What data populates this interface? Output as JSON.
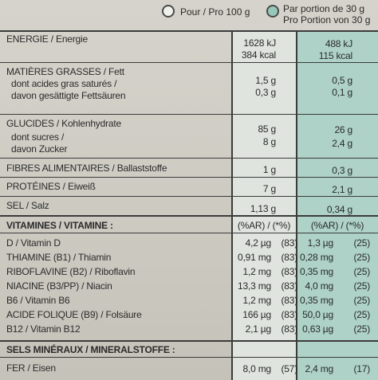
{
  "header": {
    "per100": "Pour / Pro 100 g",
    "perPortion1": "Par portion de 30 g",
    "perPortion2": "Pro Portion von 30 g"
  },
  "energy": {
    "label": "ENERGIE / Energie",
    "p1": "1628 kJ",
    "p2": "384 kcal",
    "s1": "488 kJ",
    "s2": "115 kcal"
  },
  "fat": {
    "label": "MATIÈRES GRASSES / Fett",
    "p": "1,5 g",
    "s": "0,5 g",
    "sub1": "dont acides gras saturés /",
    "sub2": "davon gesättigte Fettsäuren",
    "sp": "0,3 g",
    "ss": "0,1 g"
  },
  "carbs": {
    "label": "GLUCIDES / Kohlenhydrate",
    "p": "85 g",
    "s": "26 g",
    "sub1": "dont sucres /",
    "sub2": "davon Zucker",
    "sp": "8 g",
    "ss": "2,4 g"
  },
  "fibre": {
    "label": "FIBRES ALIMENTAIRES / Ballaststoffe",
    "p": "1 g",
    "s": "0,3 g"
  },
  "protein": {
    "label": "PROTÉINES / Eiweiß",
    "p": "7 g",
    "s": "2,1 g"
  },
  "salt": {
    "label": "SEL / Salz",
    "p": "1,13 g",
    "s": "0,34 g"
  },
  "vitamins": {
    "label": "VITAMINES / VITAMINE :",
    "hp": "(%AR) / (*%)",
    "hs": "(%AR) / (*%)",
    "rows": [
      {
        "label": "D / Vitamin D",
        "p": "4,2 µg",
        "pi": "(83)",
        "s": "1,3 µg",
        "si": "(25)"
      },
      {
        "label": "THIAMINE (B1) / Thiamin",
        "p": "0,91 mg",
        "pi": "(83)",
        "s": "0,28 mg",
        "si": "(25)"
      },
      {
        "label": "RIBOFLAVINE (B2) / Riboflavin",
        "p": "1,2 mg",
        "pi": "(83)",
        "s": "0,35 mg",
        "si": "(25)"
      },
      {
        "label": "NIACINE (B3/PP) / Niacin",
        "p": "13,3 mg",
        "pi": "(83)",
        "s": "4,0 mg",
        "si": "(25)"
      },
      {
        "label": "B6 / Vitamin B6",
        "p": "1,2 mg",
        "pi": "(83)",
        "s": "0,35 mg",
        "si": "(25)"
      },
      {
        "label": "ACIDE FOLIQUE (B9) / Folsäure",
        "p": "166 µg",
        "pi": "(83)",
        "s": "50,0 µg",
        "si": "(25)"
      },
      {
        "label": "B12 / Vitamin B12",
        "p": "2,1 µg",
        "pi": "(83)",
        "s": "0,63 µg",
        "si": "(25)"
      }
    ]
  },
  "minerals": {
    "label": "SELS MINÉRAUX / MINERALSTOFFE :",
    "row": {
      "label": "FER / Eisen",
      "p": "8,0 mg",
      "pi": "(57)",
      "s": "2,4 mg",
      "si": "(17)"
    }
  },
  "colors": {
    "portionColumn": "#aed2c8",
    "per100Column": "#dfe4de",
    "lines": "#3b3b3b"
  }
}
